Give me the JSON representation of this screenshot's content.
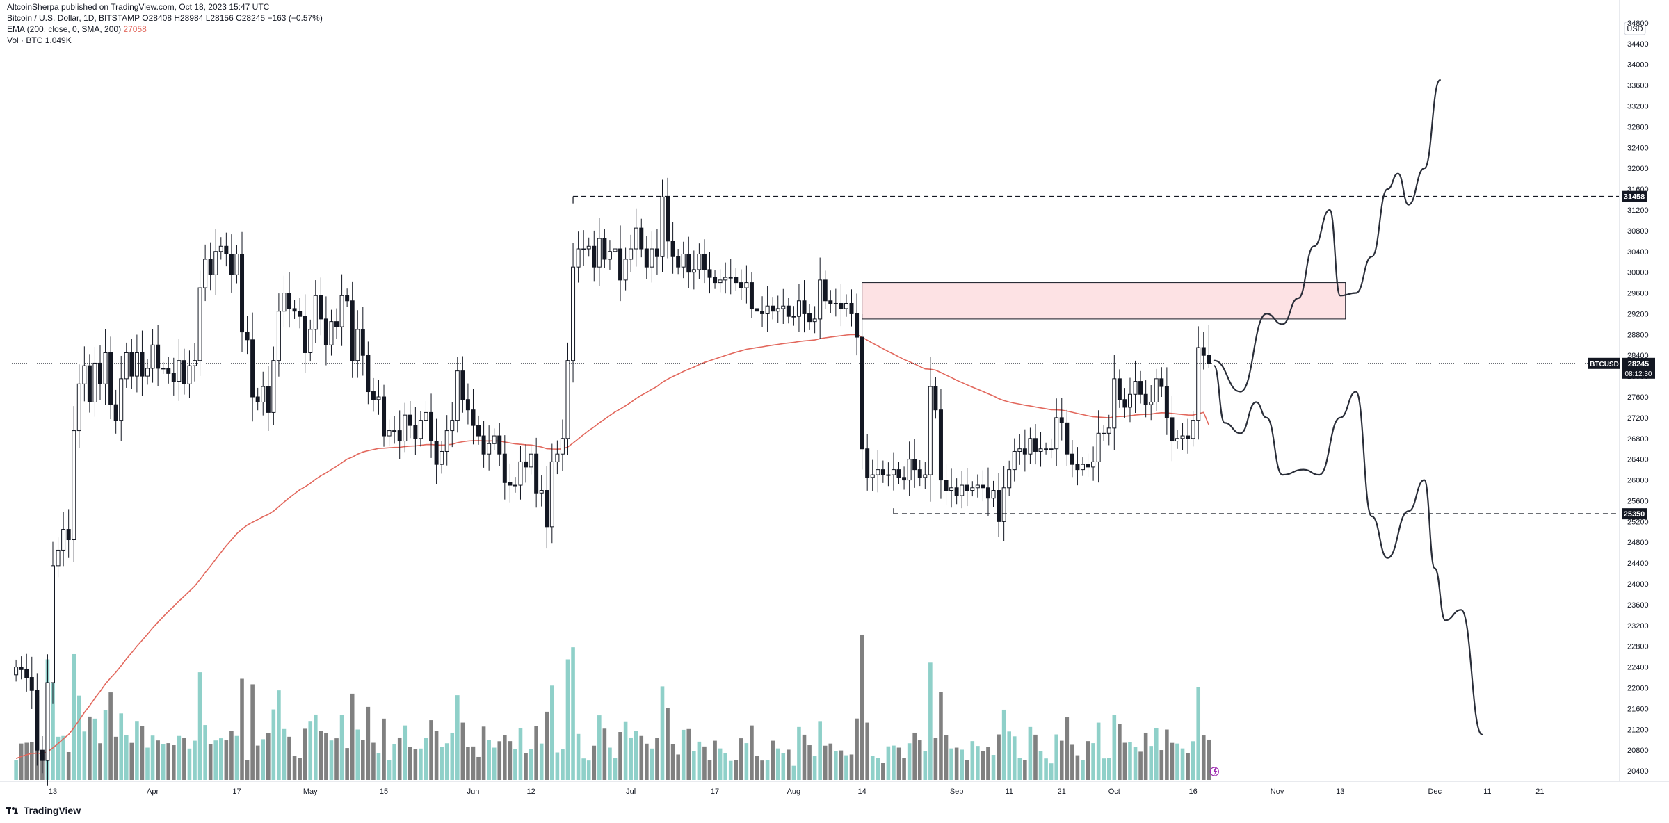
{
  "header": {
    "published": "AltcoinSherpa published on TradingView.com, Oct 18, 2023 15:47 UTC",
    "symbol_line": "Bitcoin / U.S. Dollar, 1D, BITSTAMP",
    "ohlc": "O28408 H28984 L28156 C28245 −163 (−0.57%)",
    "ema_label": "EMA (200, close, 0, SMA, 200)",
    "ema_value": "27058",
    "vol_label": "Vol · BTC",
    "vol_value": "1.049K"
  },
  "footer": {
    "brand": "TradingView"
  },
  "colors": {
    "up": "#131722",
    "down": "#131722",
    "vol_up": "#8fd0c9",
    "vol_down": "#808080",
    "ema": "#e2675c",
    "zone_fill": "#fde2e4",
    "zone_stroke": "#131722",
    "grid": "#e0e3eb"
  },
  "chart_data": {
    "type": "candlestick",
    "title": "Bitcoin / U.S. Dollar, 1D, BITSTAMP",
    "currency": "USD",
    "ylim": [
      20200,
      35000
    ],
    "y_ticks": [
      20400,
      20800,
      21200,
      21600,
      22000,
      22400,
      22800,
      23200,
      23600,
      24000,
      24400,
      24800,
      25200,
      25600,
      26000,
      26400,
      26800,
      27200,
      27600,
      28000,
      28400,
      28800,
      29200,
      29600,
      30000,
      30400,
      30800,
      31200,
      31600,
      32000,
      32400,
      32800,
      33200,
      33600,
      34000,
      34400,
      34800
    ],
    "x_ticks": [
      {
        "label": "13",
        "date": "2023-03-13"
      },
      {
        "label": "Apr",
        "date": "2023-04-01"
      },
      {
        "label": "17",
        "date": "2023-04-17"
      },
      {
        "label": "May",
        "date": "2023-05-01"
      },
      {
        "label": "15",
        "date": "2023-05-15"
      },
      {
        "label": "Jun",
        "date": "2023-06-01"
      },
      {
        "label": "12",
        "date": "2023-06-12"
      },
      {
        "label": "Jul",
        "date": "2023-07-01"
      },
      {
        "label": "17",
        "date": "2023-07-17"
      },
      {
        "label": "Aug",
        "date": "2023-08-01"
      },
      {
        "label": "14",
        "date": "2023-08-14"
      },
      {
        "label": "Sep",
        "date": "2023-09-01"
      },
      {
        "label": "11",
        "date": "2023-09-11"
      },
      {
        "label": "21",
        "date": "2023-09-21"
      },
      {
        "label": "Oct",
        "date": "2023-10-01"
      },
      {
        "label": "16",
        "date": "2023-10-16"
      },
      {
        "label": "Nov",
        "date": "2023-11-01"
      },
      {
        "label": "13",
        "date": "2023-11-13"
      },
      {
        "label": "Dec",
        "date": "2023-12-01"
      },
      {
        "label": "11",
        "date": "2023-12-11"
      },
      {
        "label": "21",
        "date": "2023-12-21"
      }
    ],
    "price_series": {
      "name": "BTCUSD",
      "start_date": "2023-03-06",
      "close": [
        22400,
        22350,
        22200,
        21950,
        20800,
        20600,
        22100,
        24350,
        24650,
        25050,
        24850,
        26950,
        27850,
        28200,
        27500,
        28250,
        27850,
        28450,
        27450,
        27150,
        27950,
        28450,
        28000,
        28450,
        28000,
        28150,
        28600,
        28150,
        28150,
        28050,
        27900,
        28300,
        27850,
        28200,
        28300,
        29700,
        30250,
        29950,
        30400,
        30500,
        30350,
        29950,
        30350,
        28850,
        28700,
        27600,
        27500,
        27800,
        27300,
        28300,
        29250,
        29600,
        29300,
        29250,
        29150,
        28450,
        28900,
        29550,
        29100,
        28600,
        29050,
        28950,
        29550,
        29450,
        28300,
        28900,
        28400,
        27700,
        27550,
        27600,
        26850,
        26950,
        26950,
        26750,
        27250,
        27050,
        26800,
        27150,
        27300,
        26750,
        26300,
        26550,
        26950,
        27150,
        28100,
        27550,
        27350,
        27050,
        26850,
        26500,
        26700,
        26850,
        26500,
        25950,
        25900,
        25900,
        26350,
        26250,
        26500,
        25750,
        25800,
        25100,
        26350,
        26500,
        26800,
        28300,
        30100,
        30450,
        30450,
        30500,
        30100,
        30650,
        30250,
        30400,
        30450,
        29850,
        30250,
        30450,
        30850,
        30450,
        30100,
        30450,
        30300,
        31450,
        30600,
        30300,
        30100,
        30350,
        30000,
        30050,
        30350,
        30050,
        29900,
        29800,
        29850,
        29900,
        29900,
        29800,
        29700,
        29800,
        29300,
        29250,
        29200,
        29350,
        29250,
        29300,
        29350,
        29150,
        29150,
        29450,
        29200,
        29050,
        29100,
        29850,
        29450,
        29400,
        29400,
        29300,
        29400,
        29200,
        28750,
        26600,
        26050,
        26100,
        26200,
        26100,
        26100,
        26200,
        26050,
        26000,
        26400,
        26200,
        26050,
        26100,
        27800,
        27350,
        26000,
        25800,
        25850,
        25700,
        25900,
        25800,
        25850,
        25900,
        25850,
        25650,
        25800,
        25200,
        25850,
        26200,
        26550,
        26600,
        26500,
        26800,
        26550,
        26600,
        26600,
        26600,
        27200,
        27100,
        26500,
        26300,
        26200,
        26300,
        26250,
        26350,
        26900,
        26900,
        27000,
        27950,
        27550,
        27400,
        27650,
        27900,
        27650,
        27450,
        27500,
        27950,
        27800,
        27200,
        26750,
        26800,
        26850,
        26800,
        27150,
        28550,
        28400,
        28245
      ],
      "ohlc_last": {
        "open": 28408,
        "high": 28984,
        "low": 28156,
        "close": 28245
      },
      "last_price_label": "28245",
      "countdown": "08:12:30"
    },
    "ema_series": {
      "name": "EMA (200, close, 0, SMA, 200)",
      "last": 27058
    },
    "volume_series": {
      "name": "Vol · BTC",
      "last": "1.049K"
    },
    "levels": [
      {
        "price": 31458,
        "label": "31458",
        "style": "dashed"
      },
      {
        "price": 25350,
        "label": "25350",
        "style": "dashed"
      }
    ],
    "zone": {
      "from_price": 29100,
      "to_price": 29800,
      "from_date": "2023-08-14",
      "to_date": "2023-11-14"
    },
    "projections": {
      "bull": [
        [
          "2023-10-20",
          28300
        ],
        [
          "2023-10-25",
          27700
        ],
        [
          "2023-10-30",
          29200
        ],
        [
          "2023-11-02",
          29000
        ],
        [
          "2023-11-05",
          29500
        ],
        [
          "2023-11-08",
          30500
        ],
        [
          "2023-11-11",
          31200
        ],
        [
          "2023-11-13",
          29550
        ],
        [
          "2023-11-16",
          29600
        ],
        [
          "2023-11-19",
          30300
        ],
        [
          "2023-11-22",
          31600
        ],
        [
          "2023-11-24",
          31900
        ],
        [
          "2023-11-26",
          31300
        ],
        [
          "2023-11-29",
          32000
        ],
        [
          "2023-12-02",
          33700
        ]
      ],
      "bear": [
        [
          "2023-10-20",
          28200
        ],
        [
          "2023-10-22",
          27100
        ],
        [
          "2023-10-25",
          26900
        ],
        [
          "2023-10-28",
          27500
        ],
        [
          "2023-10-30",
          27200
        ],
        [
          "2023-11-02",
          26100
        ],
        [
          "2023-11-06",
          26200
        ],
        [
          "2023-11-09",
          26100
        ],
        [
          "2023-11-13",
          27200
        ],
        [
          "2023-11-16",
          27700
        ],
        [
          "2023-11-19",
          25300
        ],
        [
          "2023-11-22",
          24500
        ],
        [
          "2023-11-26",
          25400
        ],
        [
          "2023-11-29",
          26000
        ],
        [
          "2023-12-01",
          24300
        ],
        [
          "2023-12-03",
          23300
        ],
        [
          "2023-12-06",
          23500
        ],
        [
          "2023-12-10",
          21100
        ]
      ]
    },
    "grid": false,
    "legend_position": "top-left"
  }
}
